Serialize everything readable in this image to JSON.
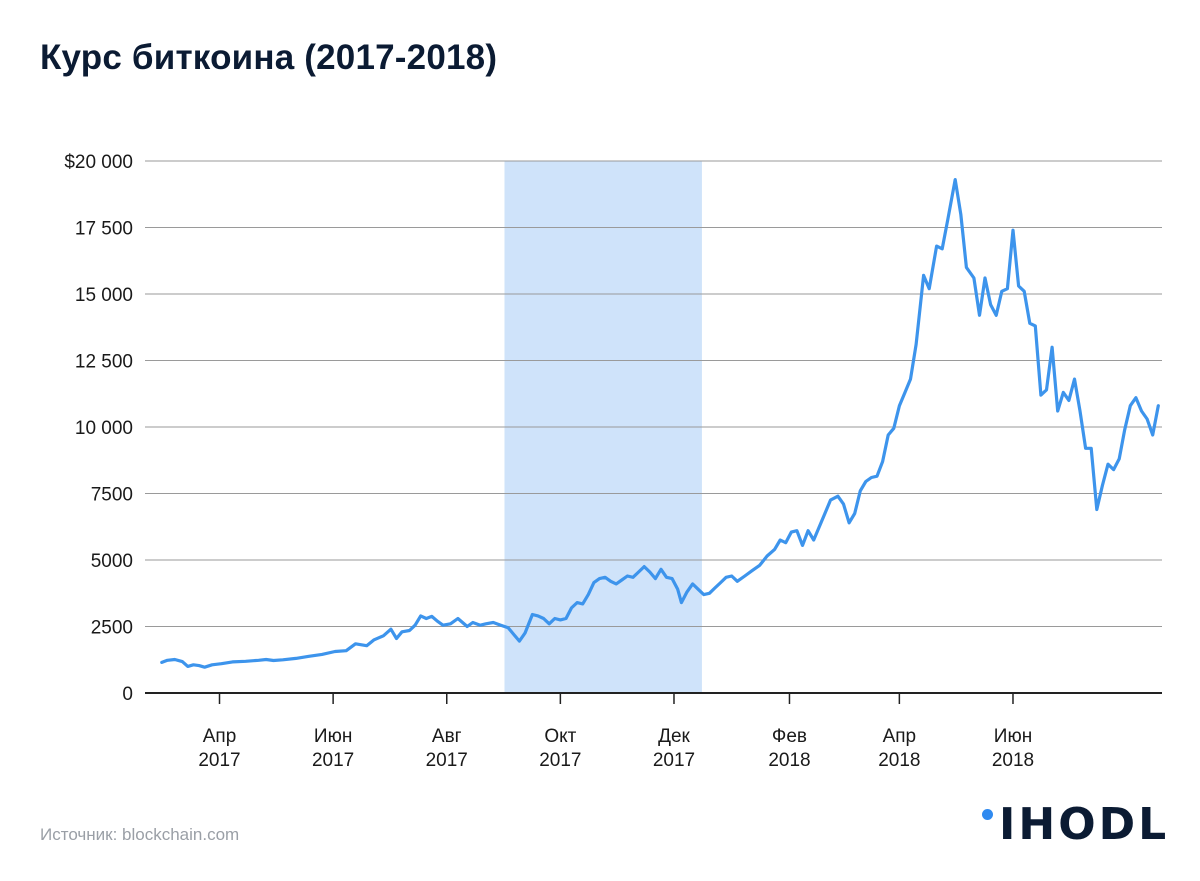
{
  "title": "Курс биткоина (2017-2018)",
  "source": "Источник: blockchain.com",
  "logo": {
    "text": "IHODL"
  },
  "colors": {
    "line": "#3d94ec",
    "highlight": "#cfe3fa",
    "grid": "#9a9a9a",
    "axis": "#222222",
    "title": "#0b1b33"
  },
  "chart_data": {
    "type": "line",
    "title": "Курс биткоина (2017-2018)",
    "xlabel": "",
    "ylabel": "",
    "ylim": [
      0,
      20000
    ],
    "xlim": [
      "2017-02-20",
      "2018-08-20"
    ],
    "grid": true,
    "y_ticks": [
      {
        "value": 0,
        "label": "0"
      },
      {
        "value": 2500,
        "label": "2500"
      },
      {
        "value": 5000,
        "label": "5000"
      },
      {
        "value": 7500,
        "label": "7500"
      },
      {
        "value": 10000,
        "label": "10 000"
      },
      {
        "value": 12500,
        "label": "12 500"
      },
      {
        "value": 15000,
        "label": "15 000"
      },
      {
        "value": 17500,
        "label": "17 500"
      },
      {
        "value": 20000,
        "label": "$20 000"
      }
    ],
    "x_ticks": [
      {
        "date": "2017-04-01",
        "month": "Апр",
        "year": "2017"
      },
      {
        "date": "2017-06-01",
        "month": "Июн",
        "year": "2017"
      },
      {
        "date": "2017-08-01",
        "month": "Авг",
        "year": "2017"
      },
      {
        "date": "2017-10-01",
        "month": "Окт",
        "year": "2017"
      },
      {
        "date": "2017-12-01",
        "month": "Дек",
        "year": "2017"
      },
      {
        "date": "2018-02-01",
        "month": "Фев",
        "year": "2018"
      },
      {
        "date": "2018-04-01",
        "month": "Апр",
        "year": "2018"
      },
      {
        "date": "2018-06-01",
        "month": "Июн",
        "year": "2018"
      }
    ],
    "highlight_range": [
      "2017-09-01",
      "2017-12-16"
    ],
    "series": [
      {
        "points": [
          [
            "2017-03-01",
            1150
          ],
          [
            "2017-03-04",
            1230
          ],
          [
            "2017-03-08",
            1260
          ],
          [
            "2017-03-12",
            1180
          ],
          [
            "2017-03-15",
            1000
          ],
          [
            "2017-03-18",
            1060
          ],
          [
            "2017-03-21",
            1030
          ],
          [
            "2017-03-24",
            970
          ],
          [
            "2017-03-28",
            1060
          ],
          [
            "2017-04-02",
            1100
          ],
          [
            "2017-04-08",
            1170
          ],
          [
            "2017-04-15",
            1190
          ],
          [
            "2017-04-22",
            1230
          ],
          [
            "2017-04-26",
            1260
          ],
          [
            "2017-04-30",
            1220
          ],
          [
            "2017-05-05",
            1250
          ],
          [
            "2017-05-12",
            1300
          ],
          [
            "2017-05-19",
            1380
          ],
          [
            "2017-05-26",
            1450
          ],
          [
            "2017-06-02",
            1560
          ],
          [
            "2017-06-08",
            1590
          ],
          [
            "2017-06-13",
            1850
          ],
          [
            "2017-06-19",
            1780
          ],
          [
            "2017-06-23",
            2000
          ],
          [
            "2017-06-28",
            2150
          ],
          [
            "2017-07-02",
            2400
          ],
          [
            "2017-07-05",
            2050
          ],
          [
            "2017-07-08",
            2300
          ],
          [
            "2017-07-12",
            2350
          ],
          [
            "2017-07-15",
            2550
          ],
          [
            "2017-07-18",
            2900
          ],
          [
            "2017-07-21",
            2800
          ],
          [
            "2017-07-24",
            2880
          ],
          [
            "2017-07-27",
            2700
          ],
          [
            "2017-07-30",
            2550
          ],
          [
            "2017-08-03",
            2600
          ],
          [
            "2017-08-07",
            2800
          ],
          [
            "2017-08-12",
            2500
          ],
          [
            "2017-08-15",
            2650
          ],
          [
            "2017-08-19",
            2550
          ],
          [
            "2017-08-22",
            2600
          ],
          [
            "2017-08-26",
            2650
          ],
          [
            "2017-08-30",
            2550
          ],
          [
            "2017-09-03",
            2450
          ],
          [
            "2017-09-06",
            2200
          ],
          [
            "2017-09-09",
            1950
          ],
          [
            "2017-09-12",
            2250
          ],
          [
            "2017-09-16",
            2950
          ],
          [
            "2017-09-19",
            2900
          ],
          [
            "2017-09-22",
            2800
          ],
          [
            "2017-09-25",
            2600
          ],
          [
            "2017-09-28",
            2800
          ],
          [
            "2017-10-01",
            2750
          ],
          [
            "2017-10-04",
            2800
          ],
          [
            "2017-10-07",
            3200
          ],
          [
            "2017-10-10",
            3400
          ],
          [
            "2017-10-13",
            3350
          ],
          [
            "2017-10-16",
            3700
          ],
          [
            "2017-10-19",
            4150
          ],
          [
            "2017-10-22",
            4300
          ],
          [
            "2017-10-25",
            4350
          ],
          [
            "2017-10-28",
            4200
          ],
          [
            "2017-10-31",
            4100
          ],
          [
            "2017-11-03",
            4250
          ],
          [
            "2017-11-06",
            4400
          ],
          [
            "2017-11-09",
            4350
          ],
          [
            "2017-11-12",
            4550
          ],
          [
            "2017-11-15",
            4750
          ],
          [
            "2017-11-18",
            4550
          ],
          [
            "2017-11-21",
            4300
          ],
          [
            "2017-11-24",
            4650
          ],
          [
            "2017-11-27",
            4350
          ],
          [
            "2017-11-30",
            4300
          ],
          [
            "2017-12-03",
            3900
          ],
          [
            "2017-12-05",
            3400
          ],
          [
            "2017-12-08",
            3800
          ],
          [
            "2017-12-11",
            4100
          ],
          [
            "2017-12-14",
            3900
          ],
          [
            "2017-12-17",
            3700
          ],
          [
            "2017-12-20",
            3750
          ],
          [
            "2017-12-23",
            3950
          ],
          [
            "2017-12-26",
            4150
          ],
          [
            "2017-12-29",
            4350
          ],
          [
            "2018-01-01",
            4400
          ],
          [
            "2018-01-04",
            4200
          ],
          [
            "2018-01-08",
            4400
          ],
          [
            "2018-01-12",
            4600
          ],
          [
            "2018-01-16",
            4800
          ],
          [
            "2018-01-20",
            5150
          ],
          [
            "2018-01-24",
            5400
          ],
          [
            "2018-01-27",
            5750
          ],
          [
            "2018-01-30",
            5650
          ],
          [
            "2018-02-02",
            6050
          ],
          [
            "2018-02-05",
            6100
          ],
          [
            "2018-02-08",
            5550
          ],
          [
            "2018-02-11",
            6100
          ],
          [
            "2018-02-14",
            5750
          ],
          [
            "2018-02-17",
            6250
          ],
          [
            "2018-02-20",
            6750
          ],
          [
            "2018-02-23",
            7250
          ],
          [
            "2018-02-27",
            7400
          ],
          [
            "2018-03-02",
            7100
          ],
          [
            "2018-03-05",
            6400
          ],
          [
            "2018-03-08",
            6750
          ],
          [
            "2018-03-11",
            7600
          ],
          [
            "2018-03-14",
            7950
          ],
          [
            "2018-03-17",
            8100
          ],
          [
            "2018-03-20",
            8150
          ],
          [
            "2018-03-23",
            8700
          ],
          [
            "2018-03-26",
            9700
          ],
          [
            "2018-03-29",
            9950
          ],
          [
            "2018-04-01",
            10800
          ],
          [
            "2018-04-04",
            11300
          ],
          [
            "2018-04-07",
            11800
          ],
          [
            "2018-04-10",
            13100
          ],
          [
            "2018-04-14",
            15700
          ],
          [
            "2018-04-17",
            15200
          ],
          [
            "2018-04-21",
            16800
          ],
          [
            "2018-04-24",
            16700
          ],
          [
            "2018-04-27",
            17800
          ],
          [
            "2018-05-01",
            19300
          ],
          [
            "2018-05-04",
            18000
          ],
          [
            "2018-05-07",
            16000
          ],
          [
            "2018-05-11",
            15600
          ],
          [
            "2018-05-14",
            14200
          ],
          [
            "2018-05-17",
            15600
          ],
          [
            "2018-05-20",
            14600
          ],
          [
            "2018-05-23",
            14200
          ],
          [
            "2018-05-26",
            15100
          ],
          [
            "2018-05-29",
            15200
          ],
          [
            "2018-06-01",
            17400
          ],
          [
            "2018-06-04",
            15300
          ],
          [
            "2018-06-07",
            15100
          ],
          [
            "2018-06-10",
            13900
          ],
          [
            "2018-06-13",
            13800
          ],
          [
            "2018-06-16",
            11200
          ],
          [
            "2018-06-19",
            11400
          ],
          [
            "2018-06-22",
            13000
          ],
          [
            "2018-06-25",
            10600
          ],
          [
            "2018-06-28",
            11300
          ],
          [
            "2018-07-01",
            11000
          ],
          [
            "2018-07-04",
            11800
          ],
          [
            "2018-07-07",
            10600
          ],
          [
            "2018-07-10",
            9200
          ],
          [
            "2018-07-13",
            9200
          ],
          [
            "2018-07-16",
            6900
          ],
          [
            "2018-07-19",
            7800
          ],
          [
            "2018-07-22",
            8600
          ],
          [
            "2018-07-25",
            8400
          ],
          [
            "2018-07-28",
            8800
          ],
          [
            "2018-07-31",
            9900
          ],
          [
            "2018-08-03",
            10800
          ],
          [
            "2018-08-06",
            11100
          ],
          [
            "2018-08-09",
            10600
          ],
          [
            "2018-08-12",
            10300
          ],
          [
            "2018-08-15",
            9700
          ],
          [
            "2018-08-18",
            10800
          ]
        ]
      }
    ]
  }
}
